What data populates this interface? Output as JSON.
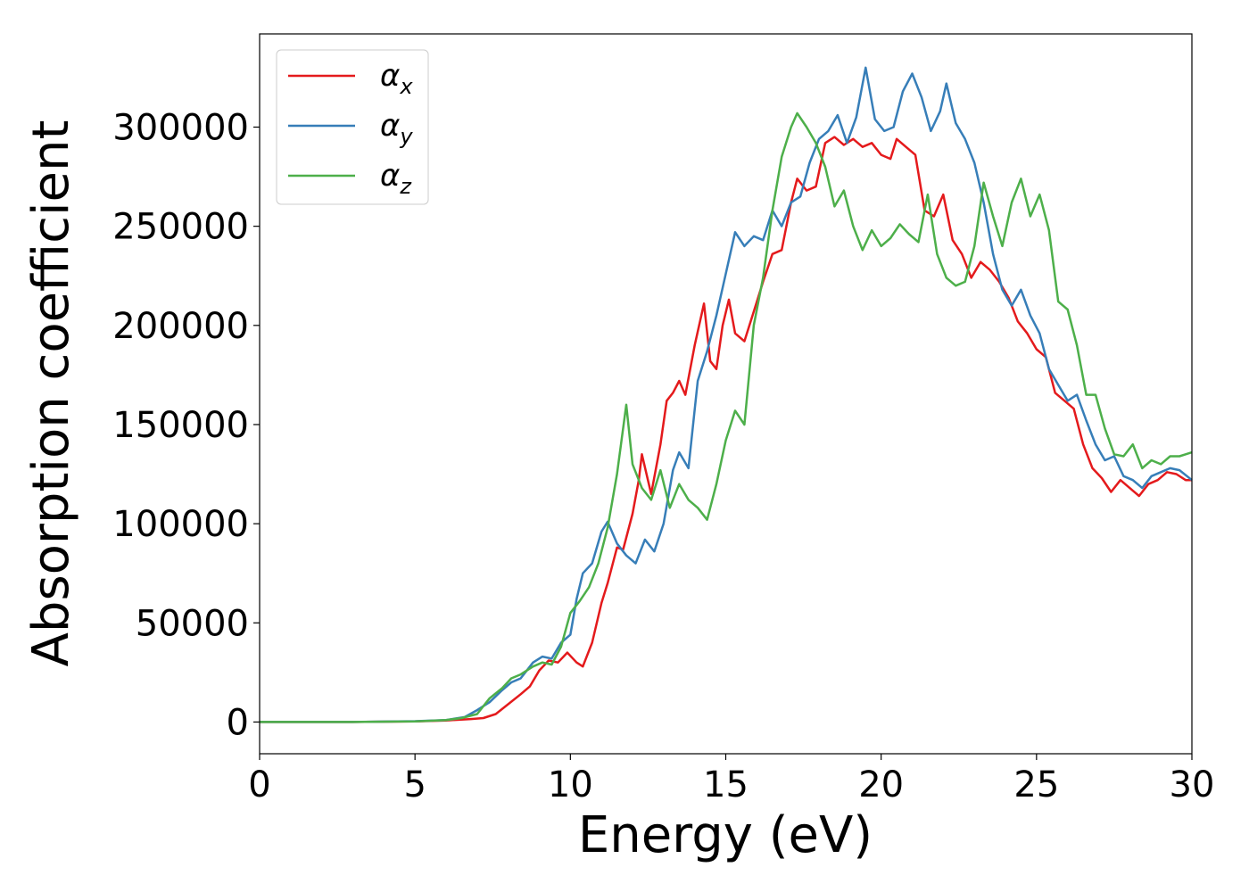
{
  "chart_data": {
    "type": "line",
    "title": "",
    "xlabel": "Energy (eV)",
    "ylabel": "Absorption coefficient",
    "xlim": [
      0,
      30
    ],
    "ylim": [
      -16000,
      347000
    ],
    "xticks": [
      0,
      5,
      10,
      15,
      20,
      25,
      30
    ],
    "xtick_labels": [
      "0",
      "5",
      "10",
      "15",
      "20",
      "25",
      "30"
    ],
    "yticks": [
      0,
      50000,
      100000,
      150000,
      200000,
      250000,
      300000
    ],
    "ytick_labels": [
      "0",
      "50000",
      "100000",
      "150000",
      "200000",
      "250000",
      "300000"
    ],
    "grid": false,
    "legend_position": "top-left",
    "series": [
      {
        "name": "αx",
        "label_base": "α",
        "label_sub": "x",
        "color": "#e41a1c",
        "points": [
          [
            0,
            0
          ],
          [
            3,
            0
          ],
          [
            5,
            300
          ],
          [
            6,
            800
          ],
          [
            6.8,
            1500
          ],
          [
            7.2,
            2000
          ],
          [
            7.6,
            4000
          ],
          [
            8,
            9000
          ],
          [
            8.4,
            14000
          ],
          [
            8.7,
            18000
          ],
          [
            9,
            26000
          ],
          [
            9.3,
            31000
          ],
          [
            9.6,
            30000
          ],
          [
            9.9,
            35000
          ],
          [
            10.2,
            30000
          ],
          [
            10.4,
            28000
          ],
          [
            10.7,
            40000
          ],
          [
            11,
            60000
          ],
          [
            11.2,
            70000
          ],
          [
            11.5,
            88000
          ],
          [
            11.7,
            87000
          ],
          [
            12,
            105000
          ],
          [
            12.2,
            122000
          ],
          [
            12.3,
            135000
          ],
          [
            12.6,
            115000
          ],
          [
            12.9,
            140000
          ],
          [
            13.1,
            162000
          ],
          [
            13.3,
            166000
          ],
          [
            13.5,
            172000
          ],
          [
            13.7,
            165000
          ],
          [
            14,
            190000
          ],
          [
            14.3,
            211000
          ],
          [
            14.5,
            182000
          ],
          [
            14.7,
            178000
          ],
          [
            14.9,
            200000
          ],
          [
            15.1,
            213000
          ],
          [
            15.3,
            196000
          ],
          [
            15.6,
            192000
          ],
          [
            15.9,
            207000
          ],
          [
            16.2,
            222000
          ],
          [
            16.5,
            236000
          ],
          [
            16.8,
            238000
          ],
          [
            17.1,
            262000
          ],
          [
            17.3,
            274000
          ],
          [
            17.6,
            268000
          ],
          [
            17.9,
            270000
          ],
          [
            18.2,
            292000
          ],
          [
            18.5,
            295000
          ],
          [
            18.8,
            291000
          ],
          [
            19.1,
            294000
          ],
          [
            19.4,
            290000
          ],
          [
            19.7,
            292000
          ],
          [
            20,
            286000
          ],
          [
            20.3,
            284000
          ],
          [
            20.5,
            294000
          ],
          [
            20.8,
            290000
          ],
          [
            21.1,
            286000
          ],
          [
            21.4,
            258000
          ],
          [
            21.7,
            255000
          ],
          [
            22,
            266000
          ],
          [
            22.3,
            243000
          ],
          [
            22.6,
            236000
          ],
          [
            22.9,
            224000
          ],
          [
            23.2,
            232000
          ],
          [
            23.5,
            228000
          ],
          [
            23.8,
            222000
          ],
          [
            24.1,
            214000
          ],
          [
            24.4,
            202000
          ],
          [
            24.7,
            196000
          ],
          [
            25,
            188000
          ],
          [
            25.3,
            184000
          ],
          [
            25.6,
            166000
          ],
          [
            25.9,
            162000
          ],
          [
            26.2,
            158000
          ],
          [
            26.5,
            140000
          ],
          [
            26.8,
            128000
          ],
          [
            27.1,
            123000
          ],
          [
            27.4,
            116000
          ],
          [
            27.7,
            122000
          ],
          [
            28,
            118000
          ],
          [
            28.3,
            114000
          ],
          [
            28.6,
            120000
          ],
          [
            28.9,
            122000
          ],
          [
            29.2,
            126000
          ],
          [
            29.5,
            125000
          ],
          [
            29.8,
            122000
          ],
          [
            30,
            122000
          ]
        ]
      },
      {
        "name": "αy",
        "label_base": "α",
        "label_sub": "y",
        "color": "#377eb8",
        "points": [
          [
            0,
            0
          ],
          [
            3,
            0
          ],
          [
            5,
            400
          ],
          [
            6,
            1000
          ],
          [
            6.6,
            2500
          ],
          [
            7,
            6000
          ],
          [
            7.4,
            10000
          ],
          [
            7.8,
            16000
          ],
          [
            8.1,
            20000
          ],
          [
            8.4,
            22000
          ],
          [
            8.8,
            30000
          ],
          [
            9.1,
            33000
          ],
          [
            9.4,
            32000
          ],
          [
            9.7,
            40000
          ],
          [
            10,
            44000
          ],
          [
            10.2,
            62000
          ],
          [
            10.4,
            75000
          ],
          [
            10.7,
            80000
          ],
          [
            11,
            96000
          ],
          [
            11.2,
            101000
          ],
          [
            11.5,
            90000
          ],
          [
            11.8,
            84000
          ],
          [
            12.1,
            80000
          ],
          [
            12.4,
            92000
          ],
          [
            12.7,
            86000
          ],
          [
            13,
            100000
          ],
          [
            13.3,
            127000
          ],
          [
            13.5,
            136000
          ],
          [
            13.8,
            128000
          ],
          [
            14.1,
            172000
          ],
          [
            14.4,
            187000
          ],
          [
            14.7,
            205000
          ],
          [
            15,
            226000
          ],
          [
            15.3,
            247000
          ],
          [
            15.6,
            240000
          ],
          [
            15.9,
            245000
          ],
          [
            16.2,
            243000
          ],
          [
            16.5,
            258000
          ],
          [
            16.8,
            250000
          ],
          [
            17.1,
            262000
          ],
          [
            17.4,
            265000
          ],
          [
            17.7,
            282000
          ],
          [
            18,
            294000
          ],
          [
            18.3,
            298000
          ],
          [
            18.6,
            306000
          ],
          [
            18.9,
            292000
          ],
          [
            19.2,
            305000
          ],
          [
            19.5,
            330000
          ],
          [
            19.8,
            304000
          ],
          [
            20.1,
            298000
          ],
          [
            20.4,
            300000
          ],
          [
            20.7,
            318000
          ],
          [
            21,
            327000
          ],
          [
            21.3,
            315000
          ],
          [
            21.6,
            298000
          ],
          [
            21.9,
            308000
          ],
          [
            22.1,
            322000
          ],
          [
            22.4,
            302000
          ],
          [
            22.7,
            294000
          ],
          [
            23,
            282000
          ],
          [
            23.3,
            262000
          ],
          [
            23.6,
            236000
          ],
          [
            23.9,
            218000
          ],
          [
            24.2,
            210000
          ],
          [
            24.5,
            218000
          ],
          [
            24.8,
            205000
          ],
          [
            25.1,
            196000
          ],
          [
            25.4,
            178000
          ],
          [
            25.7,
            170000
          ],
          [
            26,
            162000
          ],
          [
            26.3,
            165000
          ],
          [
            26.6,
            152000
          ],
          [
            26.9,
            140000
          ],
          [
            27.2,
            132000
          ],
          [
            27.5,
            134000
          ],
          [
            27.8,
            124000
          ],
          [
            28.1,
            122000
          ],
          [
            28.4,
            118000
          ],
          [
            28.7,
            124000
          ],
          [
            29,
            126000
          ],
          [
            29.3,
            128000
          ],
          [
            29.6,
            127000
          ],
          [
            30,
            122000
          ]
        ]
      },
      {
        "name": "αz",
        "label_base": "α",
        "label_sub": "z",
        "color": "#4daf4a",
        "points": [
          [
            0,
            0
          ],
          [
            3,
            0
          ],
          [
            5,
            300
          ],
          [
            6,
            1000
          ],
          [
            6.5,
            2000
          ],
          [
            7,
            4000
          ],
          [
            7.4,
            12000
          ],
          [
            7.8,
            17000
          ],
          [
            8.1,
            22000
          ],
          [
            8.4,
            24000
          ],
          [
            8.8,
            28000
          ],
          [
            9.1,
            30000
          ],
          [
            9.4,
            29000
          ],
          [
            9.7,
            38000
          ],
          [
            10,
            55000
          ],
          [
            10.3,
            61000
          ],
          [
            10.6,
            68000
          ],
          [
            10.9,
            80000
          ],
          [
            11.2,
            98000
          ],
          [
            11.5,
            125000
          ],
          [
            11.8,
            160000
          ],
          [
            12,
            130000
          ],
          [
            12.3,
            118000
          ],
          [
            12.6,
            112000
          ],
          [
            12.9,
            127000
          ],
          [
            13.2,
            108000
          ],
          [
            13.5,
            120000
          ],
          [
            13.8,
            112000
          ],
          [
            14.1,
            108000
          ],
          [
            14.4,
            102000
          ],
          [
            14.7,
            120000
          ],
          [
            15,
            142000
          ],
          [
            15.3,
            157000
          ],
          [
            15.6,
            150000
          ],
          [
            15.9,
            200000
          ],
          [
            16.2,
            224000
          ],
          [
            16.5,
            258000
          ],
          [
            16.8,
            285000
          ],
          [
            17.1,
            300000
          ],
          [
            17.3,
            307000
          ],
          [
            17.6,
            300000
          ],
          [
            17.9,
            292000
          ],
          [
            18.2,
            280000
          ],
          [
            18.5,
            260000
          ],
          [
            18.8,
            268000
          ],
          [
            19.1,
            250000
          ],
          [
            19.4,
            238000
          ],
          [
            19.7,
            248000
          ],
          [
            20,
            240000
          ],
          [
            20.3,
            244000
          ],
          [
            20.6,
            251000
          ],
          [
            20.9,
            246000
          ],
          [
            21.2,
            242000
          ],
          [
            21.5,
            266000
          ],
          [
            21.8,
            236000
          ],
          [
            22.1,
            224000
          ],
          [
            22.4,
            220000
          ],
          [
            22.7,
            222000
          ],
          [
            23,
            240000
          ],
          [
            23.3,
            272000
          ],
          [
            23.6,
            255000
          ],
          [
            23.9,
            240000
          ],
          [
            24.2,
            262000
          ],
          [
            24.5,
            274000
          ],
          [
            24.8,
            255000
          ],
          [
            25.1,
            266000
          ],
          [
            25.4,
            248000
          ],
          [
            25.7,
            212000
          ],
          [
            26,
            208000
          ],
          [
            26.3,
            190000
          ],
          [
            26.6,
            165000
          ],
          [
            26.9,
            165000
          ],
          [
            27.2,
            148000
          ],
          [
            27.5,
            135000
          ],
          [
            27.8,
            134000
          ],
          [
            28.1,
            140000
          ],
          [
            28.4,
            128000
          ],
          [
            28.7,
            132000
          ],
          [
            29,
            130000
          ],
          [
            29.3,
            134000
          ],
          [
            29.6,
            134000
          ],
          [
            30,
            136000
          ]
        ]
      }
    ]
  }
}
